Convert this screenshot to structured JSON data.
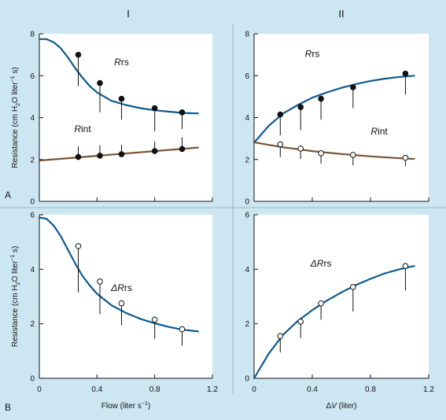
{
  "column_headers": [
    "I",
    "II"
  ],
  "row_labels": [
    "A",
    "B"
  ],
  "colors": {
    "background": "#cde7f2",
    "plot_bg": "#ffffff",
    "blue_curve": "#0d5a8f",
    "brown_curve": "#7a5233",
    "marker": "#111111"
  },
  "chart_data": [
    {
      "id": "A-I",
      "type": "scatter",
      "ylabel": "Resistance (cm H2O liter⁻¹ s)",
      "xlabel": "",
      "xlim": [
        0,
        1.2
      ],
      "ylim": [
        0,
        8
      ],
      "xticks": [
        0,
        0.4,
        0.8,
        1.2
      ],
      "yticks": [
        0,
        2,
        4,
        6,
        8
      ],
      "show_xticklabels": false,
      "series": [
        {
          "name": "Rrs",
          "marker": "filled",
          "curve": "blue",
          "points": [
            [
              0.27,
              7.0
            ],
            [
              0.42,
              5.65
            ],
            [
              0.57,
              4.9
            ],
            [
              0.8,
              4.45
            ],
            [
              0.99,
              4.25
            ]
          ],
          "err": [
            1.5,
            1.4,
            1.0,
            1.1,
            0.8
          ],
          "fit": [
            [
              0,
              7.75
            ],
            [
              0.05,
              7.75
            ],
            [
              0.1,
              7.6
            ],
            [
              0.15,
              7.3
            ],
            [
              0.2,
              6.85
            ],
            [
              0.25,
              6.35
            ],
            [
              0.3,
              5.9
            ],
            [
              0.35,
              5.5
            ],
            [
              0.4,
              5.2
            ],
            [
              0.5,
              4.8
            ],
            [
              0.6,
              4.6
            ],
            [
              0.7,
              4.45
            ],
            [
              0.8,
              4.35
            ],
            [
              0.9,
              4.28
            ],
            [
              1.0,
              4.22
            ],
            [
              1.1,
              4.2
            ]
          ]
        },
        {
          "name": "Rint",
          "marker": "filled",
          "curve": "brown",
          "points": [
            [
              0.27,
              2.12
            ],
            [
              0.42,
              2.18
            ],
            [
              0.57,
              2.25
            ],
            [
              0.8,
              2.4
            ],
            [
              0.99,
              2.5
            ]
          ],
          "err_up": [
            0.5,
            0.5,
            0.45,
            0.45,
            0.55
          ],
          "fit": [
            [
              0,
              1.95
            ],
            [
              1.1,
              2.57
            ]
          ]
        }
      ],
      "labels": [
        {
          "prefix": "R",
          "suffix": "rs",
          "x": 0.57,
          "y": 6.5
        },
        {
          "prefix": "R",
          "suffix": "int",
          "x": 0.3,
          "y": 3.3
        }
      ]
    },
    {
      "id": "A-II",
      "type": "scatter",
      "ylabel": "",
      "xlabel": "",
      "xlim": [
        0,
        1.2
      ],
      "ylim": [
        0,
        8
      ],
      "xticks": [
        0,
        0.4,
        0.8,
        1.2
      ],
      "yticks": [
        0,
        2,
        4,
        6,
        8
      ],
      "show_xticklabels": false,
      "series": [
        {
          "name": "Rrs",
          "marker": "filled",
          "curve": "blue",
          "points": [
            [
              0.18,
              4.15
            ],
            [
              0.32,
              4.5
            ],
            [
              0.46,
              4.9
            ],
            [
              0.68,
              5.45
            ],
            [
              1.04,
              6.1
            ]
          ],
          "err": [
            1.0,
            1.1,
            1.0,
            1.0,
            1.0
          ],
          "fit": [
            [
              0,
              2.8
            ],
            [
              0.1,
              3.6
            ],
            [
              0.2,
              4.2
            ],
            [
              0.3,
              4.6
            ],
            [
              0.4,
              4.95
            ],
            [
              0.5,
              5.2
            ],
            [
              0.6,
              5.42
            ],
            [
              0.7,
              5.6
            ],
            [
              0.8,
              5.75
            ],
            [
              0.9,
              5.86
            ],
            [
              1.0,
              5.94
            ],
            [
              1.1,
              6.0
            ]
          ]
        },
        {
          "name": "Rint",
          "marker": "open",
          "curve": "brown",
          "points": [
            [
              0.18,
              2.72
            ],
            [
              0.32,
              2.52
            ],
            [
              0.46,
              2.3
            ],
            [
              0.68,
              2.22
            ],
            [
              1.04,
              2.08
            ]
          ],
          "err": [
            0.6,
            0.5,
            0.5,
            0.5,
            0.4
          ],
          "fit": [
            [
              0,
              2.82
            ],
            [
              0.2,
              2.58
            ],
            [
              0.4,
              2.4
            ],
            [
              0.6,
              2.26
            ],
            [
              0.8,
              2.15
            ],
            [
              1.0,
              2.06
            ],
            [
              1.1,
              2.03
            ]
          ]
        }
      ],
      "labels": [
        {
          "prefix": "R",
          "suffix": "rs",
          "x": 0.4,
          "y": 6.9
        },
        {
          "prefix": "R",
          "suffix": "int",
          "x": 0.86,
          "y": 3.2
        }
      ]
    },
    {
      "id": "B-I",
      "type": "scatter",
      "ylabel": "Resistance (cm H2O liter⁻¹ s)",
      "xlabel": "Flow (liter s⁻¹)",
      "xlim": [
        0,
        1.2
      ],
      "ylim": [
        0,
        6
      ],
      "xticks": [
        0,
        0.4,
        0.8,
        1.2
      ],
      "yticks": [
        0,
        2,
        4,
        6
      ],
      "show_xticklabels": true,
      "series": [
        {
          "name": "ΔRrs",
          "marker": "open",
          "curve": "blue",
          "points": [
            [
              0.27,
              4.85
            ],
            [
              0.42,
              3.55
            ],
            [
              0.57,
              2.75
            ],
            [
              0.8,
              2.15
            ],
            [
              0.99,
              1.8
            ]
          ],
          "err": [
            1.7,
            1.2,
            0.8,
            0.7,
            0.6
          ],
          "fit": [
            [
              0,
              5.9
            ],
            [
              0.05,
              5.85
            ],
            [
              0.1,
              5.6
            ],
            [
              0.15,
              5.2
            ],
            [
              0.2,
              4.7
            ],
            [
              0.25,
              4.2
            ],
            [
              0.3,
              3.75
            ],
            [
              0.35,
              3.4
            ],
            [
              0.4,
              3.1
            ],
            [
              0.5,
              2.68
            ],
            [
              0.6,
              2.4
            ],
            [
              0.7,
              2.18
            ],
            [
              0.8,
              2.02
            ],
            [
              0.9,
              1.88
            ],
            [
              1.0,
              1.78
            ],
            [
              1.1,
              1.72
            ]
          ]
        }
      ],
      "labels": [
        {
          "prefix": "ΔR",
          "suffix": "rs",
          "x": 0.57,
          "y": 3.2
        }
      ]
    },
    {
      "id": "B-II",
      "type": "scatter",
      "ylabel": "",
      "xlabel": "ΔV (liter)",
      "xlim": [
        0,
        1.2
      ],
      "ylim": [
        0,
        6
      ],
      "xticks": [
        0,
        0.4,
        0.8,
        1.2
      ],
      "yticks": [
        0,
        2,
        4,
        6
      ],
      "show_xticklabels": true,
      "series": [
        {
          "name": "ΔRrs",
          "marker": "open",
          "curve": "blue",
          "points": [
            [
              0.18,
              1.55
            ],
            [
              0.32,
              2.08
            ],
            [
              0.46,
              2.75
            ],
            [
              0.68,
              3.35
            ],
            [
              1.04,
              4.12
            ]
          ],
          "err": [
            0.6,
            0.6,
            0.6,
            0.9,
            0.9
          ],
          "fit": [
            [
              0,
              0.0
            ],
            [
              0.1,
              0.9
            ],
            [
              0.2,
              1.6
            ],
            [
              0.3,
              2.1
            ],
            [
              0.4,
              2.5
            ],
            [
              0.5,
              2.85
            ],
            [
              0.6,
              3.15
            ],
            [
              0.7,
              3.42
            ],
            [
              0.8,
              3.65
            ],
            [
              0.9,
              3.85
            ],
            [
              1.0,
              4.0
            ],
            [
              1.1,
              4.12
            ]
          ]
        }
      ],
      "labels": [
        {
          "prefix": "ΔR",
          "suffix": "rs",
          "x": 0.46,
          "y": 4.1
        }
      ]
    }
  ]
}
